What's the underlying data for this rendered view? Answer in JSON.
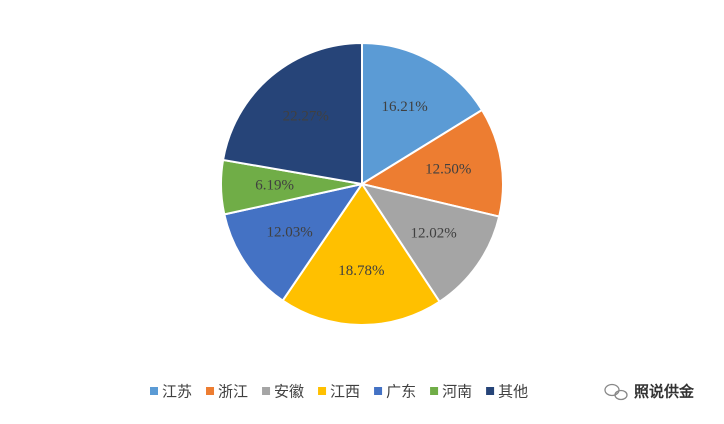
{
  "chart_data": {
    "type": "pie",
    "categories": [
      "江苏",
      "浙江",
      "安徽",
      "江西",
      "广东",
      "河南",
      "其他"
    ],
    "values": [
      16.21,
      12.5,
      12.02,
      18.78,
      12.03,
      6.19,
      22.27
    ],
    "value_labels": [
      "16.21%",
      "12.50%",
      "12.02%",
      "18.78%",
      "12.03%",
      "6.19%",
      "22.27%"
    ],
    "colors": [
      "#5b9bd5",
      "#ed7d31",
      "#a5a5a5",
      "#ffc000",
      "#4472c4",
      "#70ad47",
      "#264478"
    ],
    "legend": "bottom"
  },
  "watermark": "照说供金"
}
